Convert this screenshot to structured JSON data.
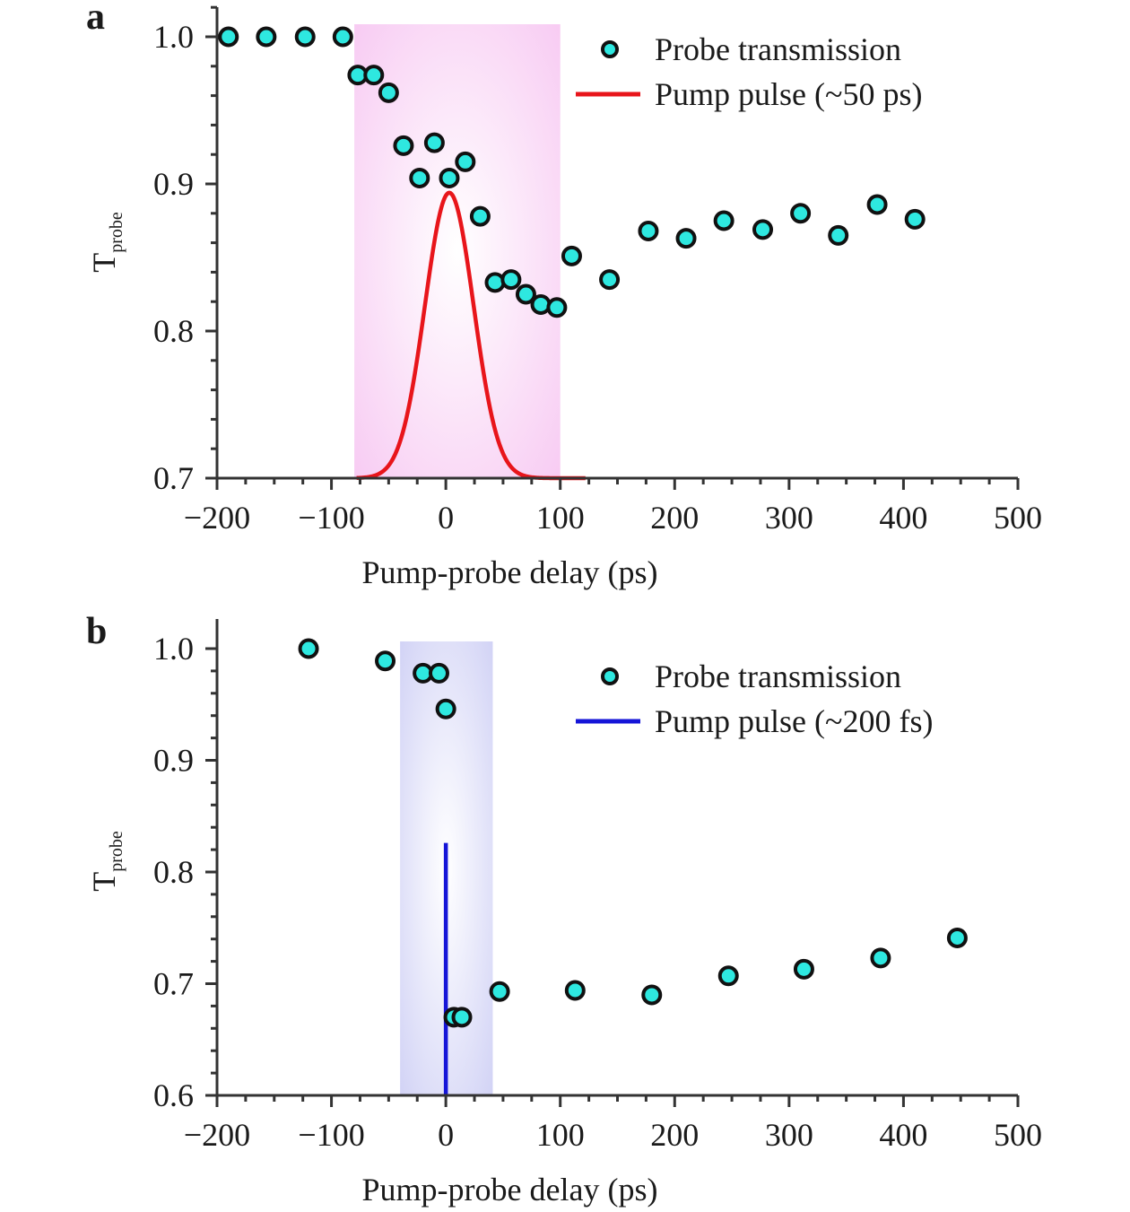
{
  "figure": {
    "panels": [
      {
        "letter": "a",
        "ylabel": {
          "main": "T",
          "sub": "probe"
        },
        "xlabel": "Pump-probe delay (ps)",
        "legend": {
          "points": "Probe transmission",
          "line": "Pump pulse (~50 ps)"
        }
      },
      {
        "letter": "b",
        "ylabel": {
          "main": "T",
          "sub": "probe"
        },
        "xlabel": "Pump-probe delay (ps)",
        "legend": {
          "points": "Probe transmission",
          "line": "Pump pulse (~200 fs)"
        }
      }
    ]
  },
  "chart_data": [
    {
      "type": "scatter",
      "panel": "a",
      "xlabel": "Pump-probe delay (ps)",
      "ylabel": "Tprobe",
      "xlim": [
        -200,
        500
      ],
      "ylim": [
        0.7,
        1.02
      ],
      "x_ticks": [
        -200,
        -100,
        0,
        100,
        200,
        300,
        400,
        500
      ],
      "x_tick_labels": [
        "−200",
        "−100",
        "0",
        "100",
        "200",
        "300",
        "400",
        "500"
      ],
      "y_ticks": [
        0.7,
        0.8,
        0.9,
        1.0
      ],
      "y_tick_labels": [
        "0.7",
        "0.8",
        "0.9",
        "1.0"
      ],
      "legend_position": "top-right",
      "shaded_region": {
        "x": [
          -80,
          100
        ],
        "color": "#f7c8f2"
      },
      "series": [
        {
          "name": "Probe transmission",
          "kind": "points",
          "color": "#2ee8e0",
          "edge": "#111111",
          "x": [
            -190,
            -157,
            -123,
            -90,
            -77,
            -63,
            -50,
            -37,
            -23,
            -10,
            3,
            17,
            30,
            43,
            57,
            70,
            83,
            97,
            110,
            143,
            177,
            210,
            243,
            277,
            310,
            343,
            377,
            410
          ],
          "y": [
            1.0,
            1.0,
            1.0,
            1.0,
            0.974,
            0.974,
            0.962,
            0.926,
            0.904,
            0.928,
            0.904,
            0.915,
            0.878,
            0.833,
            0.835,
            0.825,
            0.818,
            0.816,
            0.851,
            0.835,
            0.868,
            0.863,
            0.875,
            0.869,
            0.88,
            0.865,
            0.886,
            0.876
          ]
        },
        {
          "name": "Pump pulse (~50 ps)",
          "kind": "line",
          "color": "#e8151b",
          "shape": "gaussian",
          "x_range": [
            -78,
            122
          ],
          "center": 3,
          "fwhm": 50,
          "baseline": 0.7,
          "peak": 0.894
        }
      ]
    },
    {
      "type": "scatter",
      "panel": "b",
      "xlabel": "Pump-probe delay (ps)",
      "ylabel": "Tprobe",
      "xlim": [
        -200,
        500
      ],
      "ylim": [
        0.6,
        1.01
      ],
      "x_ticks": [
        -200,
        -100,
        0,
        100,
        200,
        300,
        400,
        500
      ],
      "x_tick_labels": [
        "−200",
        "−100",
        "0",
        "100",
        "200",
        "300",
        "400",
        "500"
      ],
      "y_ticks": [
        0.6,
        0.7,
        0.8,
        0.9,
        1.0
      ],
      "y_tick_labels": [
        "0.6",
        "0.7",
        "0.8",
        "0.9",
        "1.0"
      ],
      "legend_position": "top-right",
      "shaded_region": {
        "x": [
          -40,
          41
        ],
        "color": "#cfd0f5"
      },
      "series": [
        {
          "name": "Probe transmission",
          "kind": "points",
          "color": "#2ee8e0",
          "edge": "#111111",
          "x": [
            -120,
            -53,
            -20,
            -6,
            0,
            7,
            14,
            47,
            113,
            180,
            247,
            313,
            380,
            447
          ],
          "y": [
            1.0,
            0.989,
            0.978,
            0.978,
            0.946,
            0.67,
            0.67,
            0.693,
            0.694,
            0.69,
            0.707,
            0.713,
            0.723,
            0.741
          ]
        },
        {
          "name": "Pump pulse (~200 fs)",
          "kind": "line",
          "color": "#1515d8",
          "shape": "spike",
          "center": 0,
          "baseline": 0.6,
          "peak": 0.826
        }
      ]
    }
  ]
}
